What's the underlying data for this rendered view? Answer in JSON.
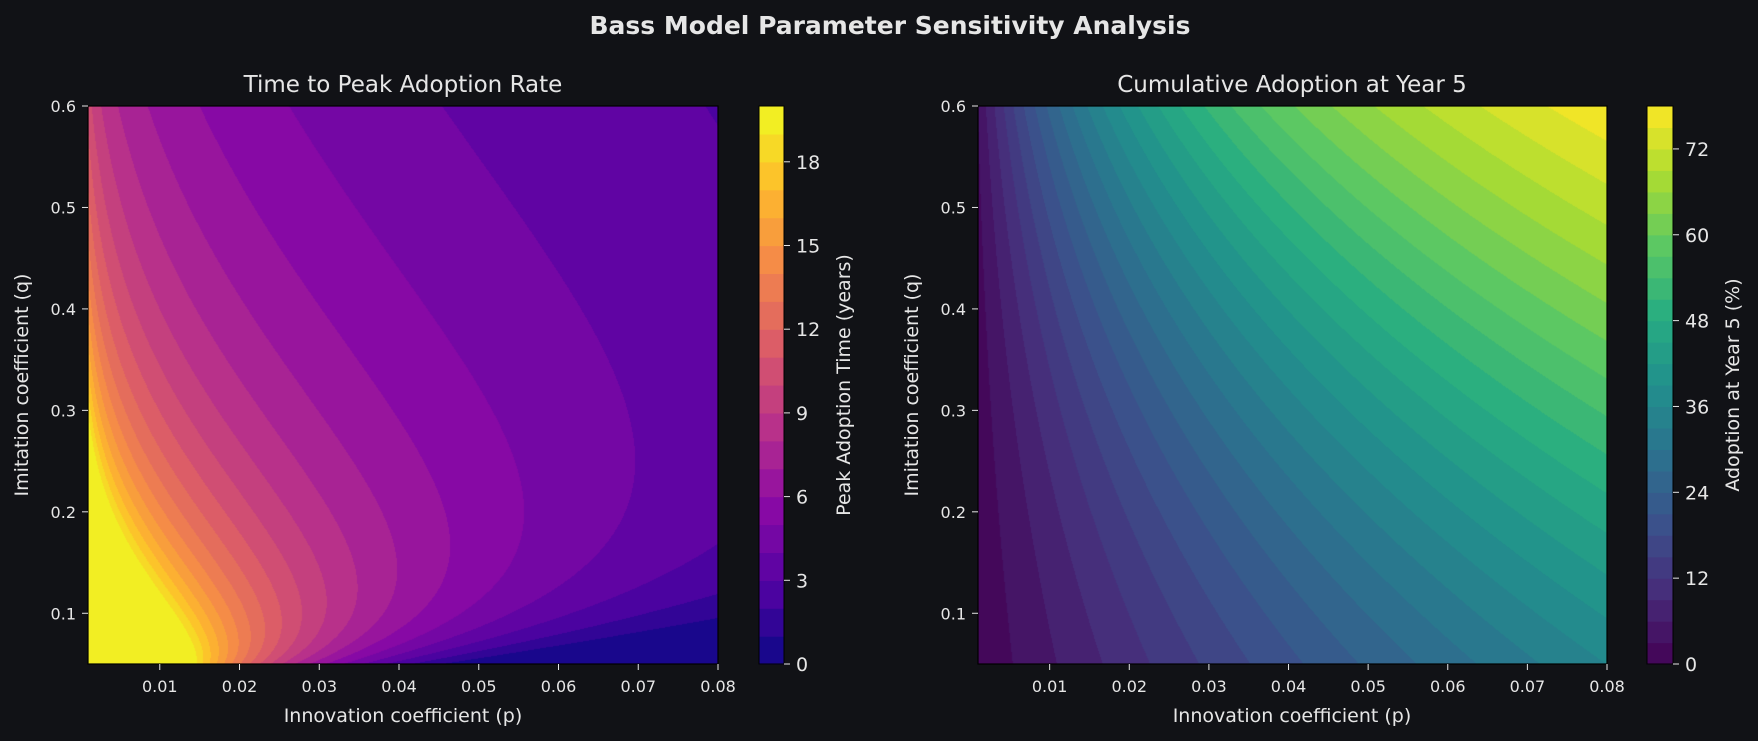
{
  "figure": {
    "title": "Bass Model Parameter Sensitivity Analysis",
    "background": "#111216",
    "text_color": "#e6e6e6"
  },
  "chart_data": [
    {
      "type": "heatmap",
      "subtype": "filled-contour",
      "title": "Time to Peak Adoption Rate",
      "xlabel": "Innovation coefficient (p)",
      "ylabel": "Imitation coefficient (q)",
      "xlim": [
        0.001,
        0.08
      ],
      "ylim": [
        0.05,
        0.6
      ],
      "xticks": [
        "0.01",
        "0.02",
        "0.03",
        "0.04",
        "0.05",
        "0.06",
        "0.07",
        "0.08"
      ],
      "yticks": [
        "0.1",
        "0.2",
        "0.3",
        "0.4",
        "0.5",
        "0.6"
      ],
      "z_function": "max(0, ln(q/p)/(p+q))",
      "colormap": "plasma",
      "colorbar": {
        "label": "Peak Adoption Time (years)",
        "range": [
          0,
          20
        ],
        "levels": 20,
        "ticks": [
          "0",
          "3",
          "6",
          "9",
          "12",
          "15",
          "18"
        ]
      }
    },
    {
      "type": "heatmap",
      "subtype": "filled-contour",
      "title": "Cumulative Adoption at Year 5",
      "xlabel": "Innovation coefficient (p)",
      "ylabel": "Imitation coefficient (q)",
      "xlim": [
        0.001,
        0.08
      ],
      "ylim": [
        0.05,
        0.6
      ],
      "xticks": [
        "0.01",
        "0.02",
        "0.03",
        "0.04",
        "0.05",
        "0.06",
        "0.07",
        "0.08"
      ],
      "yticks": [
        "0.1",
        "0.2",
        "0.3",
        "0.4",
        "0.5",
        "0.6"
      ],
      "z_function": "100*(1-exp(-(p+q)*5))/(1+(q/p)*exp(-(p+q)*5))",
      "colormap": "viridis",
      "colorbar": {
        "label": "Adoption at Year 5 (%)",
        "range": [
          0,
          78
        ],
        "levels": 26,
        "ticks": [
          "0",
          "12",
          "24",
          "36",
          "48",
          "60",
          "72"
        ]
      }
    }
  ]
}
